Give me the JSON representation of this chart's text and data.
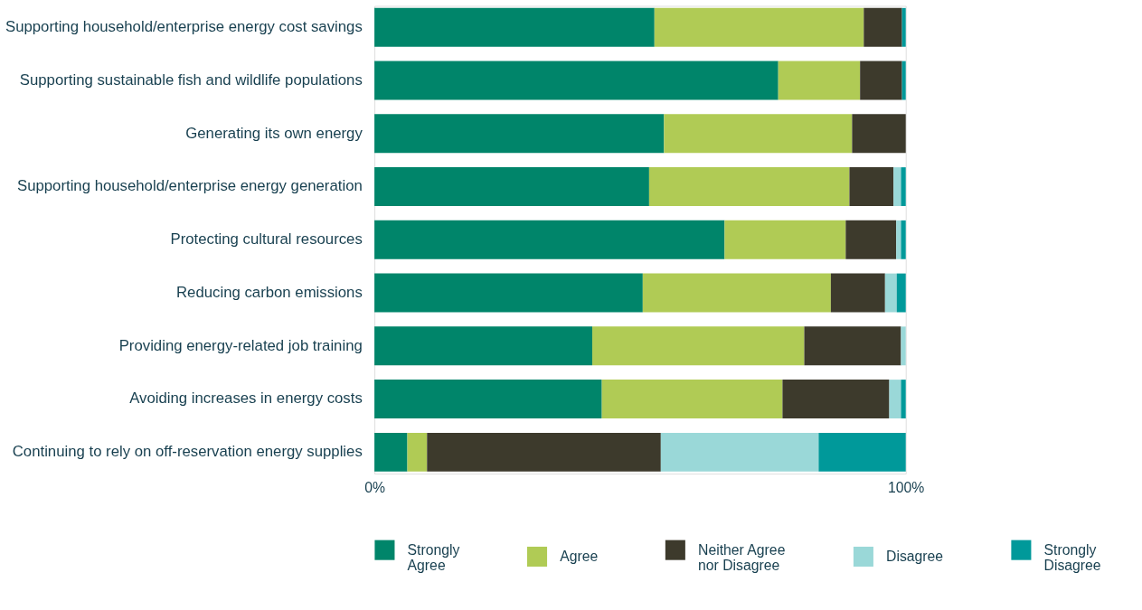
{
  "chart_data": {
    "type": "bar",
    "orientation": "horizontal",
    "stacked": true,
    "categories": [
      "Supporting household/enterprise energy cost savings",
      "Supporting sustainable fish and wildlife populations",
      "Generating its own energy",
      "Supporting household/enterprise energy generation",
      "Protecting cultural resources",
      "Reducing carbon emissions",
      "Providing energy-related job training",
      "Avoiding increases in energy costs",
      "Continuing to rely on off-reservation energy supplies"
    ],
    "series": [
      {
        "name": "Strongly Agree",
        "color": "#00856a",
        "values": [
          52.7,
          76.0,
          54.5,
          51.7,
          65.9,
          50.5,
          41.0,
          42.8,
          6.2
        ]
      },
      {
        "name": "Agree",
        "color": "#b0cb55",
        "values": [
          39.4,
          15.4,
          35.4,
          37.7,
          22.8,
          35.4,
          39.9,
          34.0,
          3.7
        ]
      },
      {
        "name": "Neither Agree nor Disagree",
        "color": "#3d3a2c",
        "values": [
          7.2,
          7.9,
          10.1,
          8.3,
          9.5,
          10.2,
          18.2,
          20.1,
          44.0
        ]
      },
      {
        "name": "Disagree",
        "color": "#9ad8d8",
        "values": [
          null,
          null,
          null,
          1.4,
          0.9,
          2.2,
          0.9,
          2.2,
          29.7
        ]
      },
      {
        "name": "Strongly Disagree",
        "color": "#00999a",
        "values": [
          0.7,
          0.7,
          null,
          0.9,
          0.9,
          1.7,
          null,
          0.9,
          16.4
        ]
      }
    ],
    "xlim": [
      0,
      100
    ],
    "xticks": [
      {
        "value": 0,
        "label": "0%"
      },
      {
        "value": 100,
        "label": "100%"
      }
    ],
    "grid": false,
    "legend": "bottom"
  }
}
